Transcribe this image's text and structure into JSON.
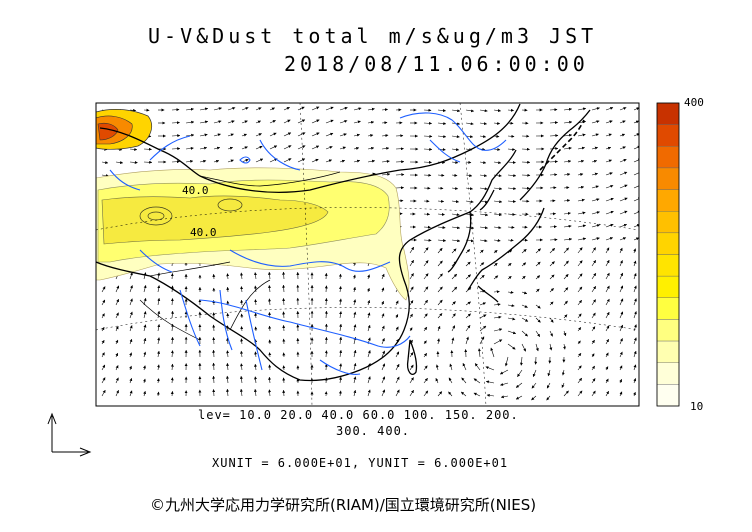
{
  "header": {
    "title": "U-V&Dust total m/s&ug/m3 JST",
    "datetime": "2018/08/11.06:00:00"
  },
  "levels": {
    "line1": "lev= 10.0 20.0 40.0 60.0 100. 150. 200.",
    "line2": "300. 400.",
    "contour_labels": [
      "40.0",
      "40.0"
    ]
  },
  "units_line": "XUNIT = 6.000E+01, YUNIT = 6.000E+01",
  "colorbar": {
    "max_label": "400",
    "min_label": "10",
    "colors": [
      "#c83200",
      "#e04a00",
      "#f06a00",
      "#f88a00",
      "#ffa800",
      "#ffc000",
      "#ffd400",
      "#ffe400",
      "#fff000",
      "#ffff40",
      "#ffff80",
      "#ffffb0",
      "#ffffd8",
      "#fffff0"
    ]
  },
  "footer": {
    "copyright": "©九州大学応用力学研究所(RIAM)/国立環境研究所(NIES)"
  },
  "map_colors": {
    "river": "#1e5fff",
    "coast": "#000000",
    "dust_light": "#ffffc0",
    "dust_mid": "#ffff70",
    "dust_strong": "#f6ea40"
  }
}
